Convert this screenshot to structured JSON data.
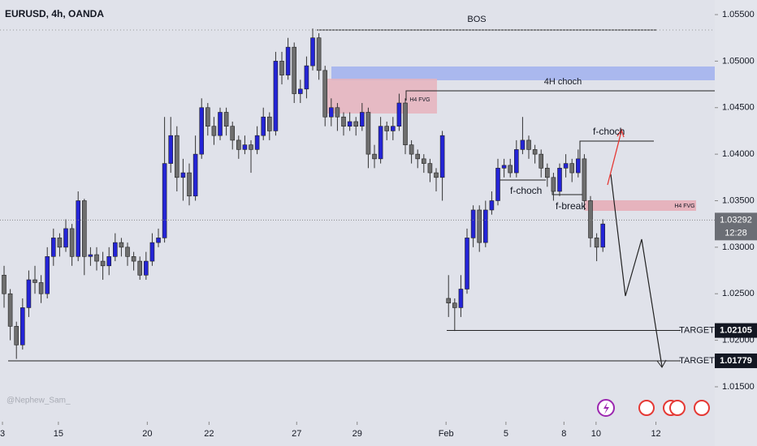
{
  "chart_data": {
    "type": "candlestick",
    "title": "EURUSD, 4h, OANDA",
    "watermark": "@Nephew_Sam_",
    "up_color": "#2424d6",
    "down_color": "#6e6e6e",
    "open": [
      1.027,
      1.025,
      1.0215,
      1.0195,
      1.0235,
      1.0265,
      1.0262,
      1.025,
      1.029,
      1.031,
      1.03,
      1.032,
      1.029,
      1.035,
      1.029,
      1.0292,
      1.0285,
      1.028,
      1.029,
      1.0305,
      1.03,
      1.029,
      1.0285,
      1.027,
      1.0285,
      1.0305,
      1.031,
      1.039,
      1.042,
      1.0375,
      1.038,
      1.0355,
      1.04,
      1.045,
      1.043,
      1.042,
      1.0445,
      1.043,
      1.0415,
      1.0405,
      1.041,
      1.0405,
      1.042,
      1.044,
      1.0425,
      1.05,
      1.0485,
      1.0515,
      1.0465,
      1.047,
      1.0495,
      1.0525,
      1.049,
      1.044,
      1.045,
      1.044,
      1.043,
      1.0435,
      1.043,
      1.0445,
      1.04,
      1.0395,
      1.043,
      1.0425,
      1.043,
      1.0455,
      1.041,
      1.04,
      1.0395,
      1.039,
      1.038,
      1.0375,
      1.0245,
      1.024,
      1.0235,
      1.0255,
      1.031,
      1.034,
      1.0305,
      1.034,
      1.035,
      1.0385,
      1.0388,
      1.038,
      1.0405,
      1.0415,
      1.0405,
      1.04,
      1.0385,
      1.0375,
      1.036,
      1.0385,
      1.039,
      1.038,
      1.0395,
      1.035,
      1.031,
      1.03
    ],
    "high": [
      1.028,
      1.0255,
      1.022,
      1.0245,
      1.0275,
      1.028,
      1.027,
      1.03,
      1.032,
      1.0315,
      1.033,
      1.0325,
      1.036,
      1.0352,
      1.03,
      1.03,
      1.0295,
      1.03,
      1.0315,
      1.031,
      1.0305,
      1.0295,
      1.029,
      1.0295,
      1.0315,
      1.032,
      1.044,
      1.044,
      1.043,
      1.0395,
      1.039,
      1.042,
      1.046,
      1.0455,
      1.044,
      1.045,
      1.045,
      1.0435,
      1.042,
      1.042,
      1.0415,
      1.043,
      1.045,
      1.0445,
      1.051,
      1.051,
      1.0525,
      1.052,
      1.048,
      1.0505,
      1.0535,
      1.053,
      1.0495,
      1.046,
      1.0455,
      1.0445,
      1.0445,
      1.044,
      1.0455,
      1.045,
      1.041,
      1.044,
      1.0435,
      1.044,
      1.0465,
      1.046,
      1.0415,
      1.0405,
      1.04,
      1.0395,
      1.0385,
      1.0425,
      1.027,
      1.0245,
      1.027,
      1.032,
      1.0345,
      1.0345,
      1.035,
      1.036,
      1.0395,
      1.0395,
      1.0395,
      1.0415,
      1.044,
      1.042,
      1.041,
      1.0405,
      1.039,
      1.038,
      1.039,
      1.04,
      1.0395,
      1.0405,
      1.04,
      1.0355,
      1.0315,
      1.033
    ],
    "low": [
      1.0235,
      1.02,
      1.018,
      1.019,
      1.0225,
      1.025,
      1.024,
      1.0245,
      1.028,
      1.029,
      1.0295,
      1.028,
      1.0285,
      1.027,
      1.028,
      1.0275,
      1.0265,
      1.027,
      1.0285,
      1.029,
      1.028,
      1.0275,
      1.0265,
      1.0265,
      1.028,
      1.03,
      1.0305,
      1.038,
      1.036,
      1.035,
      1.0345,
      1.035,
      1.0395,
      1.042,
      1.041,
      1.0415,
      1.042,
      1.0405,
      1.0395,
      1.04,
      1.038,
      1.04,
      1.0415,
      1.0415,
      1.042,
      1.0475,
      1.048,
      1.0455,
      1.0455,
      1.046,
      1.049,
      1.048,
      1.043,
      1.043,
      1.0425,
      1.042,
      1.0425,
      1.042,
      1.0425,
      1.0385,
      1.0385,
      1.039,
      1.0415,
      1.0415,
      1.0425,
      1.04,
      1.039,
      1.0385,
      1.038,
      1.037,
      1.036,
      1.035,
      1.0225,
      1.021,
      1.0225,
      1.025,
      1.03,
      1.0295,
      1.03,
      1.0335,
      1.0345,
      1.0375,
      1.0375,
      1.0375,
      1.04,
      1.0395,
      1.039,
      1.0375,
      1.0365,
      1.035,
      1.0355,
      1.0375,
      1.037,
      1.0375,
      1.034,
      1.03,
      1.0285,
      1.0295
    ],
    "close": [
      1.025,
      1.0215,
      1.0195,
      1.0235,
      1.0265,
      1.0262,
      1.025,
      1.029,
      1.031,
      1.03,
      1.032,
      1.029,
      1.035,
      1.029,
      1.0292,
      1.0285,
      1.028,
      1.029,
      1.0305,
      1.03,
      1.029,
      1.0285,
      1.027,
      1.0285,
      1.0305,
      1.031,
      1.039,
      1.042,
      1.0375,
      1.038,
      1.0355,
      1.04,
      1.045,
      1.043,
      1.042,
      1.0445,
      1.043,
      1.0415,
      1.0405,
      1.041,
      1.0405,
      1.042,
      1.044,
      1.0425,
      1.05,
      1.0485,
      1.0515,
      1.0465,
      1.047,
      1.0495,
      1.0525,
      1.049,
      1.044,
      1.045,
      1.044,
      1.043,
      1.0435,
      1.043,
      1.0445,
      1.04,
      1.0395,
      1.043,
      1.0425,
      1.043,
      1.0455,
      1.041,
      1.04,
      1.0395,
      1.039,
      1.038,
      1.0375,
      1.042,
      1.024,
      1.0235,
      1.0255,
      1.031,
      1.034,
      1.0305,
      1.034,
      1.035,
      1.0385,
      1.0388,
      1.038,
      1.0405,
      1.0415,
      1.0405,
      1.04,
      1.0385,
      1.0375,
      1.036,
      1.0385,
      1.039,
      1.038,
      1.0395,
      1.035,
      1.031,
      1.03,
      1.0325
    ],
    "xlim": [
      -0.66,
      115.13
    ],
    "xticks": [
      {
        "value": -0.26,
        "label": "3"
      },
      {
        "value": 8.8,
        "label": "15"
      },
      {
        "value": 23.2,
        "label": "20"
      },
      {
        "value": 33.2,
        "label": "22"
      },
      {
        "value": 47.4,
        "label": "27"
      },
      {
        "value": 57.2,
        "label": "29"
      },
      {
        "value": 71.6,
        "label": "Feb"
      },
      {
        "value": 81.3,
        "label": "5"
      },
      {
        "value": 90.7,
        "label": "8"
      },
      {
        "value": 95.9,
        "label": "10"
      },
      {
        "value": 105.6,
        "label": "12"
      }
    ],
    "ylim": [
      1.01125,
      1.05657
    ],
    "yticks": [
      {
        "value": 1.055,
        "label": "1.05500"
      },
      {
        "value": 1.05,
        "label": "1.05000"
      },
      {
        "value": 1.045,
        "label": "1.04500"
      },
      {
        "value": 1.04,
        "label": "1.04000"
      },
      {
        "value": 1.035,
        "label": "1.03500"
      },
      {
        "value": 1.03,
        "label": "1.03000"
      },
      {
        "value": 1.025,
        "label": "1.02500"
      },
      {
        "value": 1.02,
        "label": "1.02000"
      },
      {
        "value": 1.015,
        "label": "1.01500"
      }
    ],
    "current_price": 1.03292,
    "countdown": "12:28",
    "levels": [
      {
        "label": "TARGET",
        "value": 1.02105
      },
      {
        "label": "TARGET",
        "value": 1.01779
      }
    ],
    "annotations": [
      "BOS",
      "4H choch",
      "H4 FVG",
      "f-choch",
      "f-choch",
      "f-break",
      "H4 FVG"
    ]
  }
}
